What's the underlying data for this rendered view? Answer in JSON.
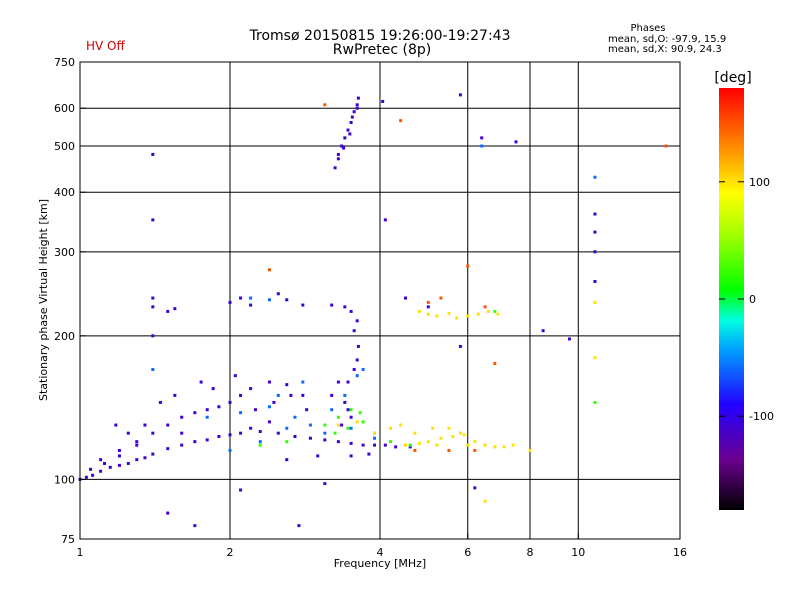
{
  "header": {
    "title_line1": "Tromsø 20150815 19:26:00-19:27:43",
    "title_line2": "RwPretec (8p)",
    "hv_status": "HV Off",
    "hv_color": "#d00000",
    "phase_title": "Phases",
    "phase_line1": "mean, sd,O: -97.9, 15.9",
    "phase_line2": "mean, sd,X:  90.9, 24.3"
  },
  "chart_data": {
    "type": "scatter",
    "xlabel": "Frequency [MHz]",
    "ylabel": "Stationary phase Virtual Height [km]",
    "x_scale": "log2",
    "y_scale": "log",
    "xlim": [
      1,
      16
    ],
    "ylim": [
      75,
      750
    ],
    "x_ticks": [
      1,
      2,
      4,
      6,
      8,
      10,
      16
    ],
    "x_tick_labels": [
      "1",
      "2",
      "4",
      "6",
      "8",
      "10",
      "16"
    ],
    "x_gridlines": [
      2,
      4,
      6,
      8,
      10
    ],
    "y_ticks": [
      75,
      100,
      200,
      300,
      400,
      500,
      600,
      750
    ],
    "y_tick_labels": [
      "75",
      "100",
      "200",
      "300",
      "400",
      "500",
      "600",
      "750"
    ],
    "y_gridlines": [
      100,
      200,
      300,
      400,
      500,
      600
    ],
    "grid": true,
    "colorbar": {
      "unit": "[deg]",
      "range": [
        -180,
        180
      ],
      "ticks": [
        100,
        0,
        -100
      ],
      "tick_labels": [
        "100",
        "0",
        "-100"
      ]
    },
    "series": [
      {
        "phase_deg": -110,
        "points": [
          [
            1.0,
            100
          ],
          [
            1.03,
            101
          ],
          [
            1.06,
            102
          ],
          [
            1.1,
            104
          ],
          [
            1.15,
            106
          ],
          [
            1.2,
            107
          ],
          [
            1.25,
            108
          ],
          [
            1.3,
            110
          ],
          [
            1.35,
            111
          ],
          [
            1.4,
            113
          ],
          [
            1.5,
            116
          ],
          [
            1.6,
            118
          ],
          [
            1.7,
            120
          ],
          [
            1.8,
            121
          ],
          [
            1.9,
            123
          ],
          [
            2.0,
            124
          ],
          [
            2.1,
            125
          ],
          [
            2.3,
            126
          ],
          [
            2.5,
            125
          ],
          [
            2.7,
            123
          ],
          [
            2.9,
            122
          ],
          [
            3.1,
            121
          ],
          [
            3.3,
            120
          ],
          [
            3.5,
            119
          ],
          [
            3.7,
            118
          ],
          [
            3.9,
            118
          ],
          [
            4.1,
            118
          ],
          [
            4.3,
            117
          ],
          [
            4.6,
            117
          ],
          [
            1.05,
            105
          ],
          [
            1.12,
            108
          ],
          [
            1.2,
            112
          ],
          [
            1.3,
            118
          ],
          [
            1.4,
            125
          ],
          [
            1.5,
            130
          ],
          [
            1.6,
            135
          ],
          [
            1.7,
            138
          ],
          [
            1.8,
            140
          ],
          [
            1.9,
            142
          ],
          [
            2.0,
            145
          ],
          [
            2.1,
            150
          ],
          [
            2.2,
            155
          ],
          [
            2.4,
            160
          ],
          [
            2.6,
            158
          ],
          [
            2.8,
            150
          ],
          [
            1.45,
            145
          ],
          [
            1.55,
            150
          ],
          [
            1.75,
            160
          ],
          [
            1.85,
            155
          ],
          [
            2.05,
            165
          ],
          [
            2.25,
            140
          ],
          [
            2.45,
            145
          ],
          [
            2.65,
            150
          ],
          [
            2.85,
            140
          ],
          [
            1.18,
            130
          ],
          [
            1.25,
            125
          ],
          [
            1.35,
            130
          ],
          [
            2.0,
            235
          ],
          [
            2.1,
            240
          ],
          [
            2.2,
            232
          ],
          [
            2.5,
            245
          ],
          [
            2.6,
            238
          ],
          [
            2.8,
            232
          ],
          [
            3.2,
            232
          ],
          [
            3.4,
            230
          ],
          [
            3.5,
            225
          ],
          [
            3.6,
            215
          ],
          [
            3.55,
            205
          ],
          [
            3.62,
            190
          ],
          [
            3.6,
            178
          ],
          [
            3.55,
            170
          ],
          [
            3.45,
            160
          ],
          [
            3.3,
            160
          ],
          [
            3.2,
            150
          ],
          [
            3.4,
            145
          ],
          [
            3.45,
            140
          ],
          [
            3.5,
            135
          ],
          [
            3.35,
            130
          ],
          [
            3.3,
            480
          ],
          [
            3.35,
            500
          ],
          [
            3.4,
            520
          ],
          [
            3.45,
            540
          ],
          [
            3.5,
            560
          ],
          [
            3.55,
            590
          ],
          [
            3.6,
            610
          ],
          [
            3.62,
            630
          ],
          [
            3.25,
            450
          ],
          [
            3.3,
            470
          ],
          [
            3.38,
            495
          ],
          [
            3.48,
            530
          ],
          [
            3.52,
            575
          ],
          [
            3.6,
            600
          ],
          [
            1.4,
            480
          ],
          [
            1.4,
            350
          ],
          [
            1.4,
            240
          ],
          [
            1.4,
            230
          ],
          [
            1.4,
            200
          ],
          [
            4.05,
            620
          ],
          [
            4.1,
            350
          ],
          [
            4.5,
            240
          ],
          [
            5.0,
            230
          ],
          [
            5.8,
            640
          ],
          [
            6.4,
            520
          ],
          [
            7.5,
            510
          ],
          [
            8.5,
            205
          ],
          [
            9.6,
            197
          ],
          [
            10.8,
            360
          ],
          [
            10.8,
            330
          ],
          [
            10.8,
            300
          ],
          [
            10.8,
            260
          ],
          [
            1.5,
            85
          ],
          [
            1.7,
            80
          ],
          [
            2.1,
            95
          ],
          [
            2.75,
            80
          ],
          [
            3.1,
            98
          ],
          [
            5.8,
            190
          ],
          [
            6.2,
            96
          ],
          [
            1.5,
            225
          ],
          [
            1.55,
            228
          ],
          [
            2.6,
            110
          ],
          [
            3.0,
            112
          ],
          [
            3.5,
            112
          ],
          [
            3.8,
            113
          ],
          [
            1.1,
            110
          ],
          [
            1.2,
            115
          ],
          [
            1.3,
            120
          ],
          [
            1.6,
            125
          ],
          [
            2.2,
            128
          ],
          [
            2.4,
            132
          ]
        ]
      },
      {
        "phase_deg": -60,
        "points": [
          [
            2.0,
            115
          ],
          [
            2.3,
            120
          ],
          [
            2.6,
            128
          ],
          [
            2.9,
            130
          ],
          [
            3.2,
            140
          ],
          [
            3.4,
            150
          ],
          [
            3.6,
            165
          ],
          [
            3.7,
            170
          ],
          [
            1.8,
            135
          ],
          [
            2.1,
            138
          ],
          [
            2.4,
            142
          ],
          [
            2.7,
            135
          ],
          [
            3.1,
            125
          ],
          [
            3.5,
            128
          ],
          [
            3.9,
            122
          ],
          [
            1.4,
            170
          ],
          [
            2.4,
            238
          ],
          [
            6.4,
            500
          ],
          [
            10.8,
            430
          ],
          [
            2.2,
            240
          ],
          [
            2.5,
            150
          ],
          [
            2.8,
            160
          ]
        ]
      },
      {
        "phase_deg": 20,
        "points": [
          [
            3.1,
            130
          ],
          [
            3.3,
            135
          ],
          [
            3.5,
            140
          ],
          [
            3.7,
            132
          ],
          [
            3.9,
            125
          ],
          [
            4.2,
            120
          ],
          [
            3.25,
            125
          ],
          [
            3.45,
            128
          ],
          [
            3.65,
            138
          ],
          [
            4.6,
            118
          ],
          [
            6.8,
            225
          ],
          [
            10.8,
            145
          ],
          [
            2.3,
            118
          ],
          [
            2.6,
            120
          ]
        ]
      },
      {
        "phase_deg": 100,
        "points": [
          [
            4.5,
            118
          ],
          [
            4.8,
            119
          ],
          [
            5.0,
            120
          ],
          [
            5.3,
            122
          ],
          [
            5.6,
            123
          ],
          [
            5.9,
            124
          ],
          [
            6.2,
            120
          ],
          [
            6.5,
            118
          ],
          [
            6.8,
            117
          ],
          [
            7.1,
            117
          ],
          [
            7.4,
            118
          ],
          [
            4.7,
            125
          ],
          [
            5.1,
            128
          ],
          [
            5.5,
            128
          ],
          [
            5.8,
            125
          ],
          [
            4.8,
            225
          ],
          [
            5.0,
            222
          ],
          [
            5.2,
            220
          ],
          [
            5.5,
            223
          ],
          [
            5.7,
            218
          ],
          [
            6.0,
            220
          ],
          [
            6.3,
            222
          ],
          [
            6.6,
            225
          ],
          [
            6.9,
            222
          ],
          [
            3.9,
            125
          ],
          [
            4.2,
            128
          ],
          [
            4.4,
            130
          ],
          [
            3.3,
            130
          ],
          [
            3.6,
            132
          ],
          [
            5.2,
            118
          ],
          [
            6.0,
            118
          ],
          [
            10.8,
            180
          ],
          [
            10.8,
            235
          ],
          [
            6.5,
            90
          ],
          [
            8.0,
            115
          ]
        ]
      },
      {
        "phase_deg": 150,
        "points": [
          [
            3.1,
            610
          ],
          [
            4.4,
            565
          ],
          [
            5.0,
            235
          ],
          [
            6.0,
            280
          ],
          [
            6.5,
            230
          ],
          [
            6.8,
            175
          ],
          [
            2.4,
            275
          ],
          [
            15.0,
            500
          ],
          [
            4.7,
            115
          ],
          [
            5.5,
            115
          ],
          [
            6.2,
            115
          ],
          [
            5.3,
            240
          ]
        ]
      }
    ]
  }
}
